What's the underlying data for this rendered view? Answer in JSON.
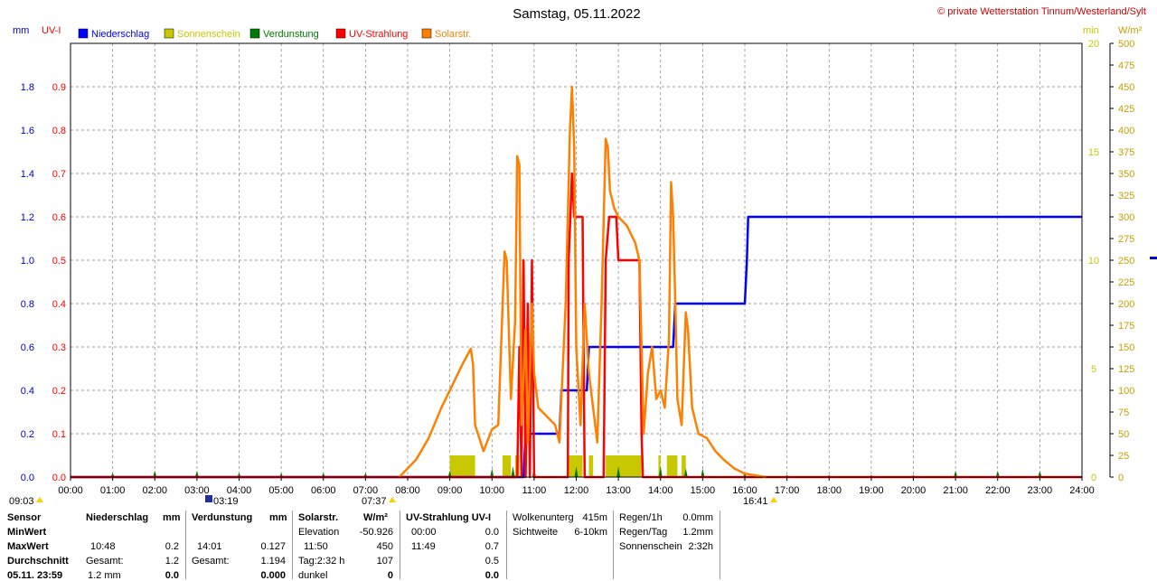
{
  "title": "Samstag, 05.11.2022",
  "copyright": "© private Wetterstation Tinnum/Westerland/Sylt",
  "axis_units": {
    "left1": "mm",
    "left2": "UV-I",
    "right1": "min",
    "right2": "W/m²"
  },
  "legend": [
    {
      "label": "Niederschlag",
      "color": "#0000ff"
    },
    {
      "label": "Sonnenschein",
      "color": "#c8c800"
    },
    {
      "label": "Verdunstung",
      "color": "#007a00"
    },
    {
      "label": "UV-Strahlung",
      "color": "#ff0000"
    },
    {
      "label": "Solarstr.",
      "color": "#ff8000"
    }
  ],
  "colors": {
    "mm": "#0000c0",
    "uv": "#ff0000",
    "min": "#c8c800",
    "wm2": "#c8a000",
    "rain": "#0000ff",
    "sun": "#c8c800",
    "evap": "#007a00",
    "solar": "#ff8000",
    "grid": "#808080"
  },
  "sun_events": {
    "sunrise": "09:03",
    "sunrise_mark": "03:19",
    "dawn": "07:37",
    "sunset": "16:41"
  },
  "chart_data": {
    "type": "line",
    "x_range": [
      "00:00",
      "24:00"
    ],
    "x_ticks": [
      "00:00",
      "01:00",
      "02:00",
      "03:00",
      "04:00",
      "05:00",
      "06:00",
      "07:00",
      "08:00",
      "09:00",
      "10:00",
      "11:00",
      "12:00",
      "13:00",
      "14:00",
      "15:00",
      "16:00",
      "17:00",
      "18:00",
      "19:00",
      "20:00",
      "21:00",
      "22:00",
      "23:00",
      "24:00"
    ],
    "axes": {
      "mm": {
        "range": [
          0,
          2.0
        ],
        "ticks": [
          "0.0",
          "0.2",
          "0.4",
          "0.6",
          "0.8",
          "1.0",
          "1.2",
          "1.4",
          "1.6",
          "1.8"
        ]
      },
      "uv": {
        "range": [
          0,
          1.0
        ],
        "ticks": [
          "0.0",
          "0.1",
          "0.2",
          "0.3",
          "0.4",
          "0.5",
          "0.6",
          "0.7",
          "0.8",
          "0.9"
        ]
      },
      "min": {
        "range": [
          0,
          20
        ],
        "ticks": [
          "0",
          "5",
          "10",
          "15",
          "20"
        ]
      },
      "wm2": {
        "range": [
          0,
          500
        ],
        "ticks": [
          "0",
          "25",
          "50",
          "75",
          "100",
          "125",
          "150",
          "175",
          "200",
          "225",
          "250",
          "275",
          "300",
          "325",
          "350",
          "375",
          "400",
          "425",
          "450",
          "475",
          "500"
        ]
      }
    },
    "grid": true,
    "series": [
      {
        "name": "Niederschlag",
        "axis": "mm",
        "kind": "step",
        "points": [
          [
            0,
            0
          ],
          [
            10.75,
            0
          ],
          [
            10.8,
            0.2
          ],
          [
            11.6,
            0.2
          ],
          [
            11.65,
            0.4
          ],
          [
            12.25,
            0.4
          ],
          [
            12.3,
            0.6
          ],
          [
            14.3,
            0.6
          ],
          [
            14.35,
            0.8
          ],
          [
            16.0,
            0.8
          ],
          [
            16.05,
            1.0
          ],
          [
            16.08,
            1.2
          ],
          [
            24,
            1.2
          ]
        ]
      },
      {
        "name": "Sonnenschein",
        "axis": "min",
        "kind": "bars",
        "bars": [
          [
            9.0,
            9.6,
            1.0
          ],
          [
            10.25,
            10.45,
            1.0
          ],
          [
            10.55,
            10.65,
            1.0
          ],
          [
            11.8,
            12.15,
            1.0
          ],
          [
            12.3,
            12.4,
            1.0
          ],
          [
            12.7,
            13.55,
            1.0
          ],
          [
            13.95,
            14.0,
            1.0
          ],
          [
            14.15,
            14.4,
            1.0
          ],
          [
            14.5,
            14.6,
            1.0
          ]
        ]
      },
      {
        "name": "Verdunstung",
        "axis": "mm",
        "kind": "spikes",
        "spikes": [
          [
            1.0,
            0.02
          ],
          [
            2.0,
            0.03
          ],
          [
            3.0,
            0.03
          ],
          [
            4.0,
            0.02
          ],
          [
            5.0,
            0.02
          ],
          [
            6.0,
            0.02
          ],
          [
            7.0,
            0.02
          ],
          [
            9.0,
            0.03
          ],
          [
            10.0,
            0.04
          ],
          [
            10.5,
            0.05
          ],
          [
            11.0,
            0.05
          ],
          [
            12.0,
            0.05
          ],
          [
            13.0,
            0.05
          ],
          [
            14.0,
            0.05
          ],
          [
            14.6,
            0.04
          ],
          [
            15.0,
            0.04
          ],
          [
            16.0,
            0.02
          ],
          [
            17.0,
            0.01
          ],
          [
            18.0,
            0.01
          ],
          [
            19.0,
            0.01
          ],
          [
            20.0,
            0.01
          ],
          [
            21.0,
            0.03
          ],
          [
            22.0,
            0.03
          ],
          [
            23.0,
            0.03
          ]
        ]
      },
      {
        "name": "UV-Strahlung",
        "axis": "uv",
        "kind": "line",
        "points": [
          [
            0,
            0
          ],
          [
            10.6,
            0
          ],
          [
            10.65,
            0.3
          ],
          [
            10.7,
            0.0
          ],
          [
            10.75,
            0.5
          ],
          [
            10.8,
            0.0
          ],
          [
            10.85,
            0.4
          ],
          [
            10.9,
            0.0
          ],
          [
            10.95,
            0.5
          ],
          [
            11.0,
            0.0
          ],
          [
            11.8,
            0.0
          ],
          [
            11.82,
            0.5
          ],
          [
            11.86,
            0.6
          ],
          [
            11.9,
            0.7
          ],
          [
            11.95,
            0.6
          ],
          [
            12.15,
            0.6
          ],
          [
            12.2,
            0.0
          ],
          [
            12.65,
            0.0
          ],
          [
            12.7,
            0.5
          ],
          [
            12.78,
            0.6
          ],
          [
            12.95,
            0.6
          ],
          [
            13.0,
            0.5
          ],
          [
            13.5,
            0.5
          ],
          [
            13.55,
            0.1
          ],
          [
            13.58,
            0.0
          ],
          [
            24,
            0.0
          ]
        ]
      },
      {
        "name": "Solarstr.",
        "axis": "wm2",
        "kind": "line",
        "points": [
          [
            7.8,
            0
          ],
          [
            8.0,
            10
          ],
          [
            8.2,
            20
          ],
          [
            8.5,
            45
          ],
          [
            8.8,
            80
          ],
          [
            9.1,
            110
          ],
          [
            9.3,
            130
          ],
          [
            9.5,
            148
          ],
          [
            9.55,
            130
          ],
          [
            9.6,
            60
          ],
          [
            9.8,
            30
          ],
          [
            10.0,
            55
          ],
          [
            10.15,
            60
          ],
          [
            10.3,
            260
          ],
          [
            10.35,
            250
          ],
          [
            10.45,
            90
          ],
          [
            10.55,
            180
          ],
          [
            10.6,
            370
          ],
          [
            10.65,
            360
          ],
          [
            10.7,
            60
          ],
          [
            10.8,
            170
          ],
          [
            10.85,
            40
          ],
          [
            10.95,
            200
          ],
          [
            11.0,
            120
          ],
          [
            11.1,
            80
          ],
          [
            11.3,
            70
          ],
          [
            11.5,
            60
          ],
          [
            11.6,
            40
          ],
          [
            11.75,
            200
          ],
          [
            11.85,
            400
          ],
          [
            11.9,
            450
          ],
          [
            11.95,
            380
          ],
          [
            12.0,
            150
          ],
          [
            12.1,
            60
          ],
          [
            12.2,
            200
          ],
          [
            12.3,
            120
          ],
          [
            12.5,
            40
          ],
          [
            12.6,
            200
          ],
          [
            12.7,
            390
          ],
          [
            12.75,
            380
          ],
          [
            12.8,
            330
          ],
          [
            12.9,
            310
          ],
          [
            13.0,
            300
          ],
          [
            13.2,
            290
          ],
          [
            13.4,
            270
          ],
          [
            13.5,
            250
          ],
          [
            13.6,
            50
          ],
          [
            13.7,
            120
          ],
          [
            13.8,
            150
          ],
          [
            13.9,
            90
          ],
          [
            14.0,
            100
          ],
          [
            14.1,
            80
          ],
          [
            14.2,
            160
          ],
          [
            14.25,
            340
          ],
          [
            14.3,
            300
          ],
          [
            14.35,
            200
          ],
          [
            14.4,
            90
          ],
          [
            14.5,
            60
          ],
          [
            14.6,
            190
          ],
          [
            14.65,
            170
          ],
          [
            14.75,
            80
          ],
          [
            14.9,
            50
          ],
          [
            15.1,
            45
          ],
          [
            15.3,
            30
          ],
          [
            15.5,
            20
          ],
          [
            15.75,
            10
          ],
          [
            16.0,
            4
          ],
          [
            16.5,
            0
          ]
        ]
      }
    ]
  },
  "stats": {
    "rows": [
      "Sensor",
      "MinWert",
      "MaxWert",
      "Durchschnitt",
      "05.11. 23:59"
    ],
    "niederschlag": {
      "header": "Niederschlag",
      "unit": "mm",
      "max_time": "10:48",
      "max_val": "0.2",
      "avg_label": "Gesamt:",
      "avg_val": "1.2",
      "last_a": "1.2 mm",
      "last_val": "0.0"
    },
    "verdunstung": {
      "header": "Verdunstung",
      "unit": "mm",
      "max_time": "14:01",
      "max_val": "0.127",
      "avg_label": "Gesamt:",
      "avg_val": "1.194",
      "last_val": "0.000"
    },
    "solar": {
      "header": "Solarstr.",
      "unit": "W/m²",
      "min_label": "Elevation",
      "min_val": "-50.926",
      "max_time": "11:50",
      "max_val": "450",
      "avg_label": "Tag:2:32 h",
      "avg_val": "107",
      "last_label": "dunkel",
      "last_val": "0"
    },
    "uv": {
      "header": "UV-Strahlung UV-I",
      "min_time": "00:00",
      "min_val": "0.0",
      "max_time": "11:49",
      "max_val": "0.7",
      "avg_val": "0.5",
      "last_val": "0.0"
    },
    "cloud": {
      "l1": "Wolkenunterg",
      "v1": "415m",
      "l2": "Sichtweite",
      "v2": "6-10km"
    },
    "rain": {
      "l1": "Regen/1h",
      "v1": "0.0mm",
      "l2": "Regen/Tag",
      "v2": "1.2mm",
      "l3": "Sonnenschein",
      "v3": "2:32h"
    }
  }
}
